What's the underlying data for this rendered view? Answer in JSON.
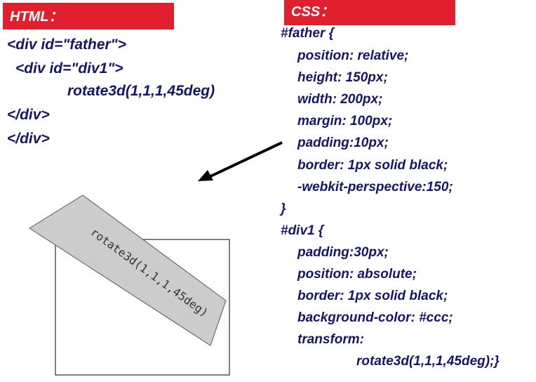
{
  "html_section": {
    "label": "HTML：",
    "lines": [
      "<div id=\"father\">",
      "<div id=\"div1\">",
      "rotate3d(1,1,1,45deg)",
      "</div>",
      "</div>"
    ]
  },
  "css_section": {
    "label": "CSS：",
    "lines": [
      "#father {",
      "position: relative;",
      "height: 150px;",
      "width: 200px;",
      "margin: 100px;",
      "padding:10px;",
      "border: 1px solid black;",
      "-webkit-perspective:150;",
      "}",
      "#div1 {",
      "padding:30px;",
      "position: absolute;",
      "border: 1px solid black;",
      "background-color: #ccc;",
      "transform:",
      "rotate3d(1,1,1,45deg);}"
    ]
  },
  "demo": {
    "inner_text": "rotate3d(1,1,1,45deg)"
  },
  "colors": {
    "label_bg": "#e0202e",
    "code_text": "#15156b",
    "panel_fill": "#cccccc"
  }
}
